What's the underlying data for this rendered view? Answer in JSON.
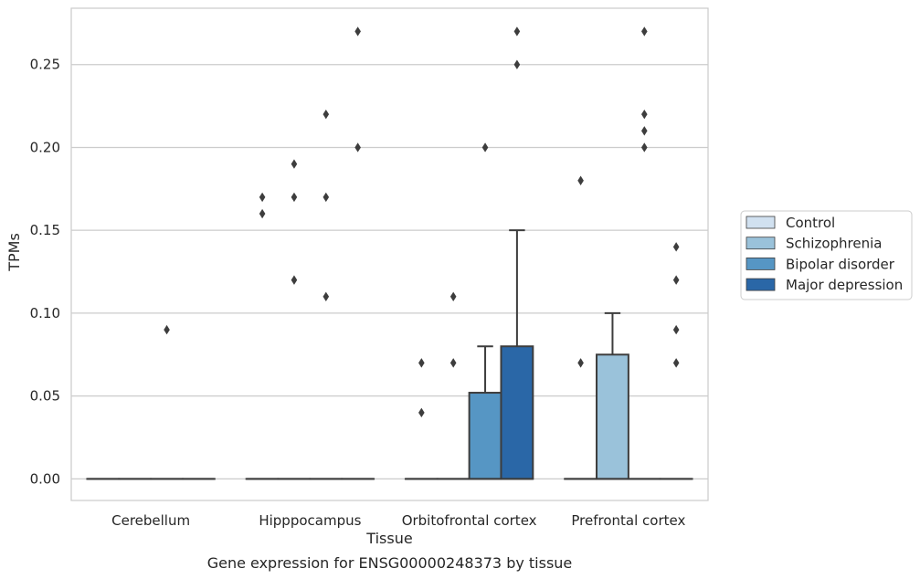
{
  "caption": "Gene expression for ENSG00000248373 by tissue",
  "chart_data": {
    "type": "boxplot",
    "xlabel": "Tissue",
    "ylabel": "TPMs",
    "ylim": [
      -0.013,
      0.284
    ],
    "yticks": [
      0.0,
      0.05,
      0.1,
      0.15,
      0.2,
      0.25
    ],
    "ytick_labels": [
      "0.00",
      "0.05",
      "0.10",
      "0.15",
      "0.20",
      "0.25"
    ],
    "grid": "horizontal",
    "legend_position": "right",
    "categories": [
      "Cerebellum",
      "Hipppocampus",
      "Orbitofrontal cortex",
      "Prefrontal cortex"
    ],
    "series": [
      {
        "name": "Control",
        "color": "#d1e1f0",
        "boxes": [
          {
            "q1": 0,
            "median": 0,
            "q3": 0,
            "whisker_low": 0,
            "whisker_high": 0,
            "outliers": []
          },
          {
            "q1": 0,
            "median": 0,
            "q3": 0,
            "whisker_low": 0,
            "whisker_high": 0,
            "outliers": [
              0.16,
              0.17
            ]
          },
          {
            "q1": 0,
            "median": 0,
            "q3": 0,
            "whisker_low": 0,
            "whisker_high": 0,
            "outliers": [
              0.04,
              0.07
            ]
          },
          {
            "q1": 0,
            "median": 0,
            "q3": 0,
            "whisker_low": 0,
            "whisker_high": 0,
            "outliers": [
              0.07,
              0.18
            ]
          }
        ]
      },
      {
        "name": "Schizophrenia",
        "color": "#9ac2da",
        "boxes": [
          {
            "q1": 0,
            "median": 0,
            "q3": 0,
            "whisker_low": 0,
            "whisker_high": 0,
            "outliers": []
          },
          {
            "q1": 0,
            "median": 0,
            "q3": 0,
            "whisker_low": 0,
            "whisker_high": 0,
            "outliers": [
              0.12,
              0.17,
              0.19
            ]
          },
          {
            "q1": 0,
            "median": 0,
            "q3": 0,
            "whisker_low": 0,
            "whisker_high": 0,
            "outliers": [
              0.07,
              0.11
            ]
          },
          {
            "q1": 0,
            "median": 0,
            "q3": 0.075,
            "whisker_low": 0,
            "whisker_high": 0.1,
            "outliers": []
          }
        ]
      },
      {
        "name": "Bipolar disorder",
        "color": "#5696c4",
        "boxes": [
          {
            "q1": 0,
            "median": 0,
            "q3": 0,
            "whisker_low": 0,
            "whisker_high": 0,
            "outliers": [
              0.09
            ]
          },
          {
            "q1": 0,
            "median": 0,
            "q3": 0,
            "whisker_low": 0,
            "whisker_high": 0,
            "outliers": [
              0.11,
              0.17,
              0.22
            ]
          },
          {
            "q1": 0,
            "median": 0,
            "q3": 0.052,
            "whisker_low": 0,
            "whisker_high": 0.08,
            "outliers": [
              0.2
            ]
          },
          {
            "q1": 0,
            "median": 0,
            "q3": 0,
            "whisker_low": 0,
            "whisker_high": 0,
            "outliers": [
              0.2,
              0.21,
              0.22,
              0.27
            ]
          }
        ]
      },
      {
        "name": "Major depression",
        "color": "#2a67a7",
        "boxes": [
          {
            "q1": 0,
            "median": 0,
            "q3": 0,
            "whisker_low": 0,
            "whisker_high": 0,
            "outliers": []
          },
          {
            "q1": 0,
            "median": 0,
            "q3": 0,
            "whisker_low": 0,
            "whisker_high": 0,
            "outliers": [
              0.2,
              0.27
            ]
          },
          {
            "q1": 0,
            "median": 0,
            "q3": 0.08,
            "whisker_low": 0,
            "whisker_high": 0.15,
            "outliers": [
              0.25,
              0.27
            ]
          },
          {
            "q1": 0,
            "median": 0,
            "q3": 0,
            "whisker_low": 0,
            "whisker_high": 0,
            "outliers": [
              0.07,
              0.09,
              0.12,
              0.14
            ]
          }
        ]
      }
    ]
  }
}
